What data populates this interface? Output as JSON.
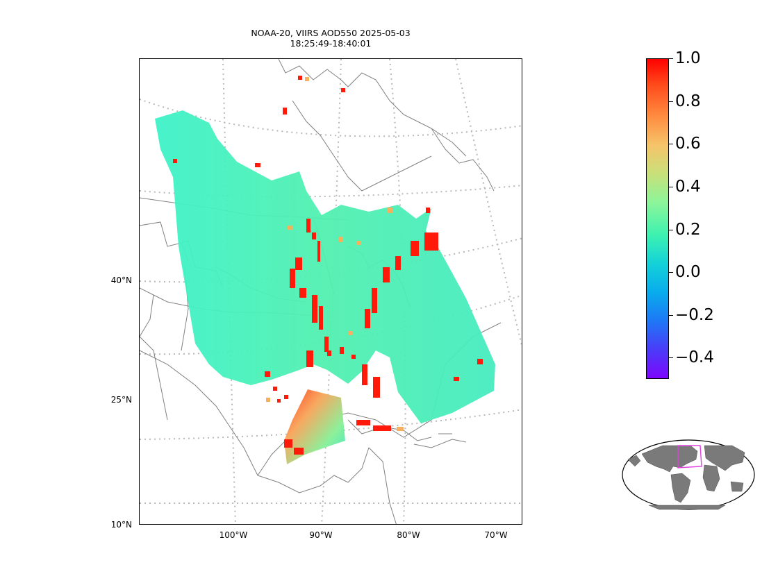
{
  "title_line1": "NOAA-20, VIIRS AOD550 2025-05-03",
  "title_line2": "18:25:49-18:40:01",
  "lat_labels": [
    "40°N",
    "25°N",
    "10°N"
  ],
  "lon_labels": [
    "100°W",
    "90°W",
    "80°W",
    "70°W"
  ],
  "colorbar": {
    "colormap": "rainbow",
    "min": -0.5,
    "max": 1.0,
    "ticks": [
      "1.0",
      "0.8",
      "0.6",
      "0.4",
      "0.2",
      "0.0",
      "−0.2",
      "−0.4"
    ]
  },
  "colors": {
    "coastline": "#808080",
    "gridline": "#b8b8b8",
    "aod_low": "#3ef2b0",
    "aod_high": "#ff0000",
    "inset_land": "#7a7a7a",
    "inset_box": "#e040e0"
  }
}
